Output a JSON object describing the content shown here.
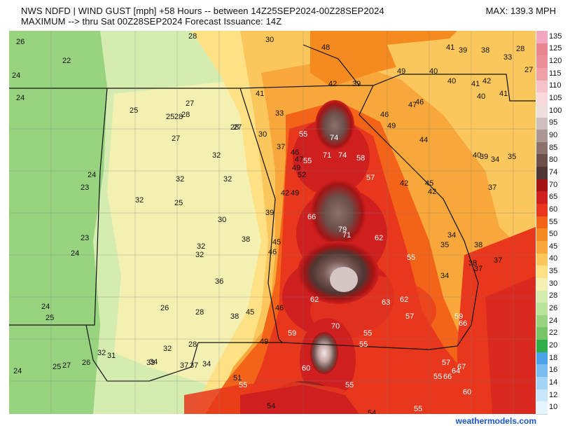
{
  "header": {
    "line1": "NWS NDFD | WIND GUST [mph] +58 Hours -- between 14Z25SEP2024-00Z28SEP2024",
    "line2": "MAXIMUM --> thru Sat 00Z28SEP2024   Forecast Issuance: 14Z",
    "max_text": "MAX: 139.3 MPH"
  },
  "legend": [
    {
      "label": "135",
      "color": "#f2a6c0"
    },
    {
      "label": "125",
      "color": "#e8858f"
    },
    {
      "label": "120",
      "color": "#ec8d9a"
    },
    {
      "label": "115",
      "color": "#f0a0a8"
    },
    {
      "label": "110",
      "color": "#f6c4c8"
    },
    {
      "label": "105",
      "color": "#fadadd"
    },
    {
      "label": "100",
      "color": "#eedfdf"
    },
    {
      "label": "95",
      "color": "#cdbfbf"
    },
    {
      "label": "90",
      "color": "#ad9795"
    },
    {
      "label": "85",
      "color": "#8c706c"
    },
    {
      "label": "80",
      "color": "#6c4f4b"
    },
    {
      "label": "74",
      "color": "#4f3633"
    },
    {
      "label": "70",
      "color": "#a31414"
    },
    {
      "label": "65",
      "color": "#d01f1f"
    },
    {
      "label": "60",
      "color": "#e8371c"
    },
    {
      "label": "55",
      "color": "#f36418"
    },
    {
      "label": "50",
      "color": "#f58a1f"
    },
    {
      "label": "45",
      "color": "#f8a83a"
    },
    {
      "label": "40",
      "color": "#fbc65c"
    },
    {
      "label": "35",
      "color": "#fde184"
    },
    {
      "label": "30",
      "color": "#f3f0b2"
    },
    {
      "label": "28",
      "color": "#d5ecb0"
    },
    {
      "label": "26",
      "color": "#b8e19a"
    },
    {
      "label": "24",
      "color": "#98d37f"
    },
    {
      "label": "22",
      "color": "#77c566"
    },
    {
      "label": "20",
      "color": "#2fae4a"
    },
    {
      "label": "18",
      "color": "#4aa3e8"
    },
    {
      "label": "16",
      "color": "#77bdf0"
    },
    {
      "label": "14",
      "color": "#a4d5f6"
    },
    {
      "label": "12",
      "color": "#c8e7fa"
    },
    {
      "label": "10",
      "color": "#e6f5fd"
    }
  ],
  "map_labels": [
    {
      "t": "26"
    },
    {
      "t": "28"
    },
    {
      "t": "30"
    },
    {
      "t": "48"
    },
    {
      "t": "41"
    },
    {
      "t": "39"
    },
    {
      "t": "38"
    },
    {
      "t": "33"
    },
    {
      "t": "28"
    },
    {
      "t": "22"
    },
    {
      "t": "24"
    },
    {
      "t": "49"
    },
    {
      "t": "40"
    },
    {
      "t": "40"
    },
    {
      "t": "41"
    },
    {
      "t": "42"
    },
    {
      "t": "27"
    },
    {
      "t": "25"
    },
    {
      "t": "24"
    },
    {
      "t": "42"
    },
    {
      "t": "39"
    },
    {
      "t": "41"
    },
    {
      "t": "40"
    },
    {
      "t": "41"
    },
    {
      "t": "27"
    },
    {
      "t": "25"
    },
    {
      "t": "28"
    },
    {
      "t": "28"
    },
    {
      "t": "27"
    },
    {
      "t": "33"
    },
    {
      "t": "47"
    },
    {
      "t": "46"
    },
    {
      "t": "46"
    },
    {
      "t": "49"
    },
    {
      "t": "28"
    },
    {
      "t": "30"
    },
    {
      "t": "27"
    },
    {
      "t": "55"
    },
    {
      "t": "74"
    },
    {
      "t": "44"
    },
    {
      "t": "37"
    },
    {
      "t": "71"
    },
    {
      "t": "74"
    },
    {
      "t": "58"
    },
    {
      "t": "40"
    },
    {
      "t": "39"
    },
    {
      "t": "34"
    },
    {
      "t": "35"
    },
    {
      "t": "32"
    },
    {
      "t": "46"
    },
    {
      "t": "47"
    },
    {
      "t": "55"
    },
    {
      "t": "49"
    },
    {
      "t": "52"
    },
    {
      "t": "24"
    },
    {
      "t": "32"
    },
    {
      "t": "32"
    },
    {
      "t": "57"
    },
    {
      "t": "42"
    },
    {
      "t": "45"
    },
    {
      "t": "42"
    },
    {
      "t": "37"
    },
    {
      "t": "23"
    },
    {
      "t": "42"
    },
    {
      "t": "49"
    },
    {
      "t": "32"
    },
    {
      "t": "25"
    },
    {
      "t": "39"
    },
    {
      "t": "30"
    },
    {
      "t": "66"
    },
    {
      "t": "79"
    },
    {
      "t": "71"
    },
    {
      "t": "62"
    },
    {
      "t": "38"
    },
    {
      "t": "34"
    },
    {
      "t": "35"
    },
    {
      "t": "23"
    },
    {
      "t": "38"
    },
    {
      "t": "45"
    },
    {
      "t": "46"
    },
    {
      "t": "32"
    },
    {
      "t": "32"
    },
    {
      "t": "24"
    },
    {
      "t": "55"
    },
    {
      "t": "37"
    },
    {
      "t": "38"
    },
    {
      "t": "37"
    },
    {
      "t": "36"
    },
    {
      "t": "34"
    },
    {
      "t": "62"
    },
    {
      "t": "63"
    },
    {
      "t": "62"
    },
    {
      "t": "24"
    },
    {
      "t": "26"
    },
    {
      "t": "28"
    },
    {
      "t": "38"
    },
    {
      "t": "45"
    },
    {
      "t": "46"
    },
    {
      "t": "57"
    },
    {
      "t": "59"
    },
    {
      "t": "66"
    },
    {
      "t": "25"
    },
    {
      "t": "70"
    },
    {
      "t": "59"
    },
    {
      "t": "55"
    },
    {
      "t": "49"
    },
    {
      "t": "55"
    },
    {
      "t": "28"
    },
    {
      "t": "32"
    },
    {
      "t": "31"
    },
    {
      "t": "32"
    },
    {
      "t": "57"
    },
    {
      "t": "67"
    },
    {
      "t": "64"
    },
    {
      "t": "24"
    },
    {
      "t": "25"
    },
    {
      "t": "27"
    },
    {
      "t": "26"
    },
    {
      "t": "33"
    },
    {
      "t": "34"
    },
    {
      "t": "37"
    },
    {
      "t": "37"
    },
    {
      "t": "34"
    },
    {
      "t": "60"
    },
    {
      "t": "55"
    },
    {
      "t": "66"
    },
    {
      "t": "51"
    },
    {
      "t": "55"
    },
    {
      "t": "55"
    },
    {
      "t": "60"
    },
    {
      "t": "54"
    },
    {
      "t": "54"
    },
    {
      "t": "55"
    }
  ],
  "footer": "weathermodels.com"
}
